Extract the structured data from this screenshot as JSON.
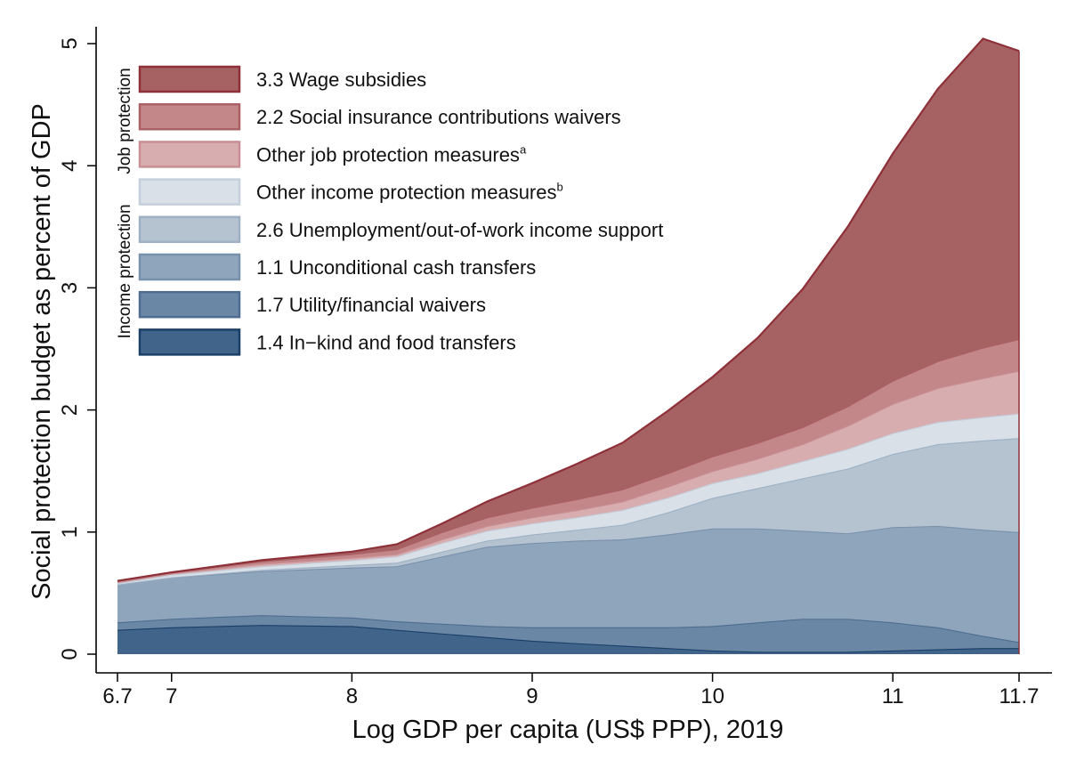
{
  "chart_data": {
    "type": "area",
    "stacked": true,
    "title": "",
    "xlabel": "Log GDP per capita (US$ PPP), 2019",
    "ylabel": "Social protection budget as percent of GDP",
    "xlim": [
      6.7,
      11.7
    ],
    "ylim": [
      0,
      5
    ],
    "x_ticks": [
      "6.7",
      "7",
      "8",
      "9",
      "10",
      "11",
      "11.7"
    ],
    "x_tick_values": [
      6.7,
      7,
      8,
      9,
      10,
      11,
      11.7
    ],
    "y_ticks": [
      "0",
      "1",
      "2",
      "3",
      "4",
      "5"
    ],
    "y_tick_values": [
      0,
      1,
      2,
      3,
      4,
      5
    ],
    "legend_groups": [
      {
        "label": "Job protection",
        "series_names": [
          "3.3 Wage subsidies",
          "2.2 Social insurance contributions waivers",
          "Other job protection measures"
        ]
      },
      {
        "label": "Income protection",
        "series_names": [
          "Other income protection measures",
          "2.6 Unemployment/out-of-work income support",
          "1.1 Unconditional cash transfers",
          "1.7 Utility/financial waivers",
          "1.4 In−kind and food transfers"
        ]
      }
    ],
    "x": [
      6.7,
      7.0,
      7.5,
      8.0,
      8.25,
      8.5,
      8.75,
      9.0,
      9.25,
      9.5,
      9.75,
      10.0,
      10.25,
      10.5,
      10.75,
      11.0,
      11.25,
      11.5,
      11.7
    ],
    "series": [
      {
        "name": "1.4 In−kind and food transfers",
        "superscript": "",
        "color": "#40648a",
        "line": "#1a3f66",
        "values": [
          0.2,
          0.22,
          0.24,
          0.23,
          0.2,
          0.17,
          0.14,
          0.11,
          0.09,
          0.07,
          0.05,
          0.03,
          0.02,
          0.02,
          0.02,
          0.03,
          0.04,
          0.05,
          0.05
        ]
      },
      {
        "name": "1.7 Utility/financial waivers",
        "superscript": "",
        "color": "#6b87a6",
        "line": "#4f6d90",
        "values": [
          0.06,
          0.07,
          0.08,
          0.07,
          0.07,
          0.08,
          0.09,
          0.11,
          0.13,
          0.15,
          0.17,
          0.2,
          0.24,
          0.27,
          0.27,
          0.23,
          0.18,
          0.1,
          0.05
        ]
      },
      {
        "name": "1.1 Unconditional cash transfers",
        "superscript": "",
        "color": "#8fa5bc",
        "line": "#7990ab",
        "values": [
          0.31,
          0.34,
          0.36,
          0.41,
          0.45,
          0.55,
          0.65,
          0.69,
          0.71,
          0.72,
          0.76,
          0.8,
          0.77,
          0.72,
          0.7,
          0.78,
          0.83,
          0.87,
          0.9
        ]
      },
      {
        "name": "2.6 Unemployment/out-of-work income support",
        "superscript": "",
        "color": "#b5c3d1",
        "line": "#9eb1c4",
        "values": [
          0.0,
          0.0,
          0.01,
          0.02,
          0.03,
          0.04,
          0.05,
          0.07,
          0.09,
          0.12,
          0.18,
          0.25,
          0.33,
          0.43,
          0.53,
          0.6,
          0.67,
          0.73,
          0.77
        ]
      },
      {
        "name": "Other income protection measures",
        "superscript": "b",
        "color": "#d9e0e8",
        "line": "#c4cfdb",
        "values": [
          0.01,
          0.02,
          0.03,
          0.04,
          0.05,
          0.07,
          0.08,
          0.09,
          0.1,
          0.12,
          0.12,
          0.12,
          0.12,
          0.14,
          0.16,
          0.17,
          0.18,
          0.19,
          0.2
        ]
      },
      {
        "name": "Other job protection measures",
        "superscript": "a",
        "color": "#d8adb0",
        "line": "#c88f94",
        "values": [
          0.01,
          0.01,
          0.02,
          0.02,
          0.02,
          0.03,
          0.04,
          0.05,
          0.06,
          0.07,
          0.09,
          0.1,
          0.12,
          0.14,
          0.19,
          0.24,
          0.28,
          0.32,
          0.35
        ]
      },
      {
        "name": "2.2 Social insurance contributions waivers",
        "superscript": "",
        "color": "#c48789",
        "line": "#aa6065",
        "values": [
          0.01,
          0.01,
          0.02,
          0.03,
          0.04,
          0.06,
          0.07,
          0.08,
          0.09,
          0.1,
          0.11,
          0.12,
          0.13,
          0.14,
          0.16,
          0.19,
          0.22,
          0.25,
          0.26
        ]
      },
      {
        "name": "3.3 Wage subsidies",
        "superscript": "",
        "color": "#a66163",
        "line": "#8e3038",
        "values": [
          0.0,
          0.0,
          0.01,
          0.02,
          0.04,
          0.07,
          0.13,
          0.2,
          0.29,
          0.38,
          0.51,
          0.65,
          0.86,
          1.13,
          1.47,
          1.86,
          2.23,
          2.53,
          2.36
        ]
      }
    ]
  }
}
